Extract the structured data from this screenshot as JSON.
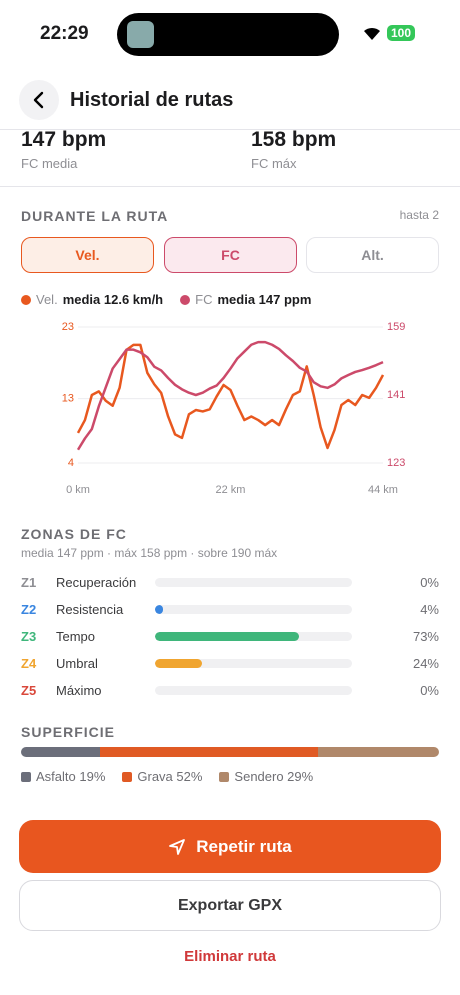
{
  "status_bar": {
    "time": "22:29",
    "battery": "100"
  },
  "header": {
    "title": "Historial de rutas"
  },
  "stats": [
    {
      "value": "147 bpm",
      "label": "FC media"
    },
    {
      "value": "158 bpm",
      "label": "FC máx"
    }
  ],
  "during_route": {
    "title": "DURANTE LA RUTA",
    "note": "hasta 2",
    "tabs": [
      "Vel.",
      "FC",
      "Alt."
    ],
    "legend": [
      {
        "name": "Vel.",
        "summary": "media 12.6 km/h"
      },
      {
        "name": "FC",
        "summary": "media 147 ppm"
      }
    ]
  },
  "chart_data": {
    "type": "line",
    "x": [
      0,
      1,
      2,
      3,
      4,
      5,
      6,
      7,
      8,
      9,
      10,
      11,
      12,
      13,
      14,
      15,
      16,
      17,
      18,
      19,
      20,
      21,
      22,
      23,
      24,
      25,
      26,
      27,
      28,
      29,
      30,
      31,
      32,
      33,
      34,
      35,
      36,
      37,
      38,
      39,
      40,
      41,
      42,
      43,
      44
    ],
    "xlim": [
      0,
      44
    ],
    "xticks": [
      {
        "value": 0,
        "label": "0 km"
      },
      {
        "value": 22,
        "label": "22 km"
      },
      {
        "value": 44,
        "label": "44 km"
      }
    ],
    "ylim": [
      4,
      23
    ],
    "yticks": [
      4,
      13,
      23
    ],
    "y2lim": [
      123,
      159
    ],
    "y2ticks": [
      123,
      141,
      159
    ],
    "grid": true,
    "series": [
      {
        "name": "Vel.",
        "color": "#e8581f",
        "values": [
          8.2,
          10,
          13.5,
          14,
          12.7,
          12,
          14.5,
          19.8,
          20.5,
          20.5,
          16.6,
          15,
          13.8,
          10.5,
          8,
          7.5,
          10.8,
          11.4,
          11.2,
          11.5,
          13.3,
          14.9,
          14.2,
          12,
          10,
          10.5,
          10,
          9.3,
          10,
          9.3,
          11.5,
          13.5,
          14,
          17.5,
          13.5,
          9,
          6.1,
          8.6,
          12.1,
          12.8,
          12.1,
          13.5,
          13.1,
          14.5,
          16.3
        ]
      },
      {
        "name": "FC",
        "color": "#cc4a6a",
        "axis": "y2",
        "values": [
          126.5,
          129.5,
          132,
          138,
          143,
          148,
          150.5,
          153,
          153,
          152.3,
          151,
          148.5,
          147.5,
          145.5,
          143.7,
          142.5,
          141.6,
          141,
          141.6,
          142.7,
          143.5,
          145.5,
          148,
          150.7,
          152.5,
          154.3,
          155,
          155,
          154.3,
          153.2,
          151.5,
          150,
          148.2,
          147.2,
          144.4,
          143.3,
          142.9,
          143.8,
          145.4,
          146.3,
          147.1,
          147.6,
          148.2,
          148.9,
          149.7
        ]
      }
    ]
  },
  "hr_zones": {
    "title": "ZONAS DE FC",
    "subtitle": "media 147 ppm · máx 158 ppm · sobre 190 máx",
    "zones": [
      {
        "code": "Z1",
        "name": "Recuperación",
        "value": 0,
        "value_label": "0%",
        "color": "#8e8e93"
      },
      {
        "code": "Z2",
        "name": "Resistencia",
        "value": 4,
        "value_label": "4%",
        "color": "#3a86e0"
      },
      {
        "code": "Z3",
        "name": "Tempo",
        "value": 73,
        "value_label": "73%",
        "color": "#3fb67b"
      },
      {
        "code": "Z4",
        "name": "Umbral",
        "value": 24,
        "value_label": "24%",
        "color": "#f0a530"
      },
      {
        "code": "Z5",
        "name": "Máximo",
        "value": 0,
        "value_label": "0%",
        "color": "#d9483b"
      }
    ]
  },
  "surface": {
    "title": "SUPERFICIE",
    "segments": [
      {
        "label": "Asfalto 19%",
        "value": 19,
        "color": "#6b6e7a"
      },
      {
        "label": "Grava 52%",
        "value": 52,
        "color": "#e05a24"
      },
      {
        "label": "Sendero 29%",
        "value": 29,
        "color": "#b0886a"
      }
    ]
  },
  "actions": {
    "primary": "Repetir ruta",
    "secondary": "Exportar GPX",
    "danger": "Eliminar ruta"
  }
}
